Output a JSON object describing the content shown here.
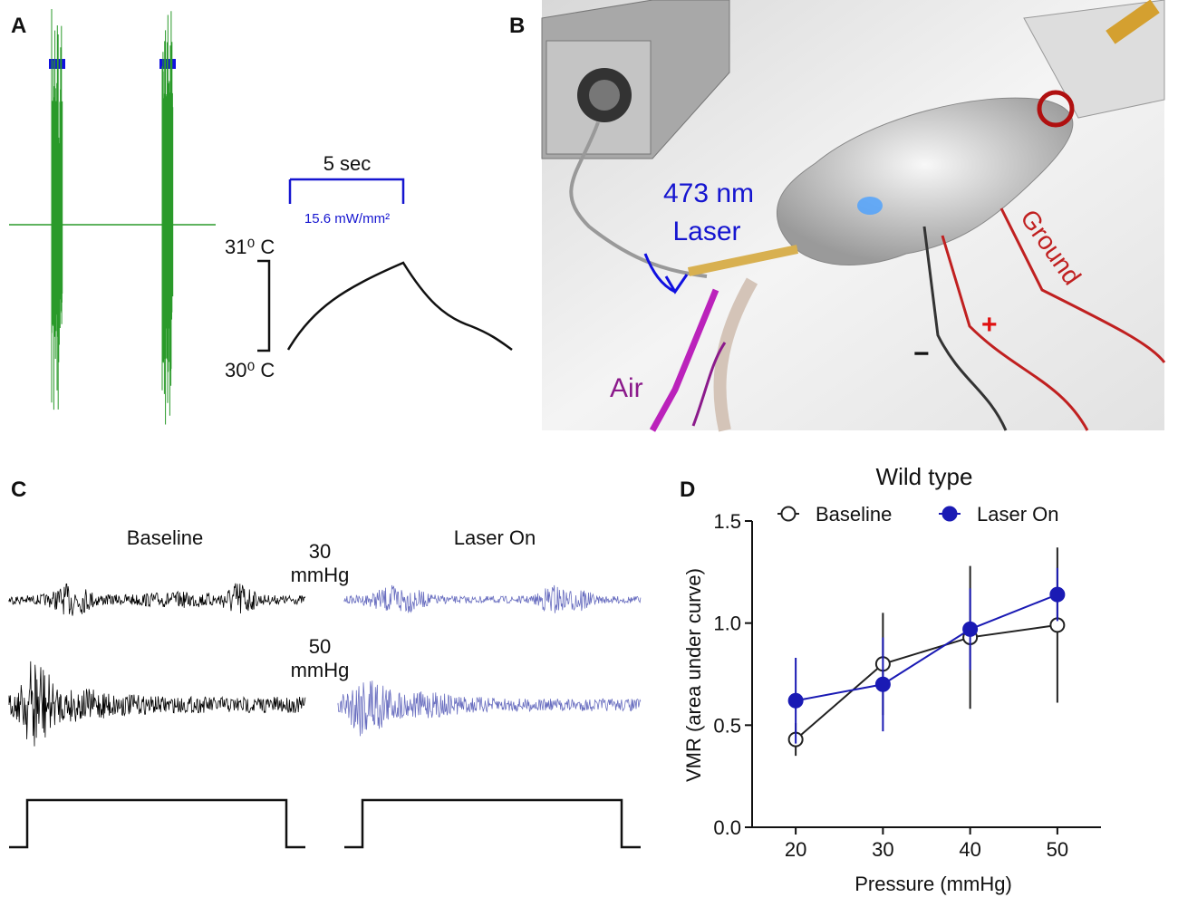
{
  "panels": {
    "a": {
      "letter": "A",
      "time_scale": "5 sec",
      "power": "15.6 mW/mm²",
      "temp_high": "31⁰ C",
      "temp_low": "30⁰ C"
    },
    "b": {
      "letter": "B",
      "laser_line1": "473 nm",
      "laser_line2": "Laser",
      "air": "Air",
      "ground": "Ground",
      "plus": "+",
      "minus": "−"
    },
    "c": {
      "letter": "C",
      "baseline": "Baseline",
      "laser_on": "Laser On",
      "p30_line1": "30",
      "p30_line2": "mmHg",
      "p50_line1": "50",
      "p50_line2": "mmHg"
    },
    "d": {
      "letter": "D"
    }
  },
  "chart_data": {
    "type": "line",
    "title": "Wild type",
    "x_label": "Pressure (mmHg)",
    "y_label": "VMR (area under curve)",
    "x": [
      20,
      30,
      40,
      50
    ],
    "series": [
      {
        "name": "Baseline",
        "color": "#222222",
        "marker": "open",
        "values": [
          0.43,
          0.8,
          0.93,
          0.99
        ],
        "errors": [
          0.08,
          0.25,
          0.35,
          0.38
        ]
      },
      {
        "name": "Laser On",
        "color": "#1a1ab4",
        "marker": "filled",
        "values": [
          0.62,
          0.7,
          0.97,
          1.14
        ],
        "errors": [
          0.21,
          0.23,
          0.2,
          0.13
        ]
      }
    ],
    "xlim": [
      15,
      55
    ],
    "xticks": [
      20,
      30,
      40,
      50
    ],
    "ylim": [
      0,
      1.5
    ],
    "yticks": [
      {
        "value": 0,
        "label": "0.0"
      },
      0.5,
      {
        "value": 1,
        "label": "1.0"
      },
      1.5
    ],
    "legend": "top"
  }
}
